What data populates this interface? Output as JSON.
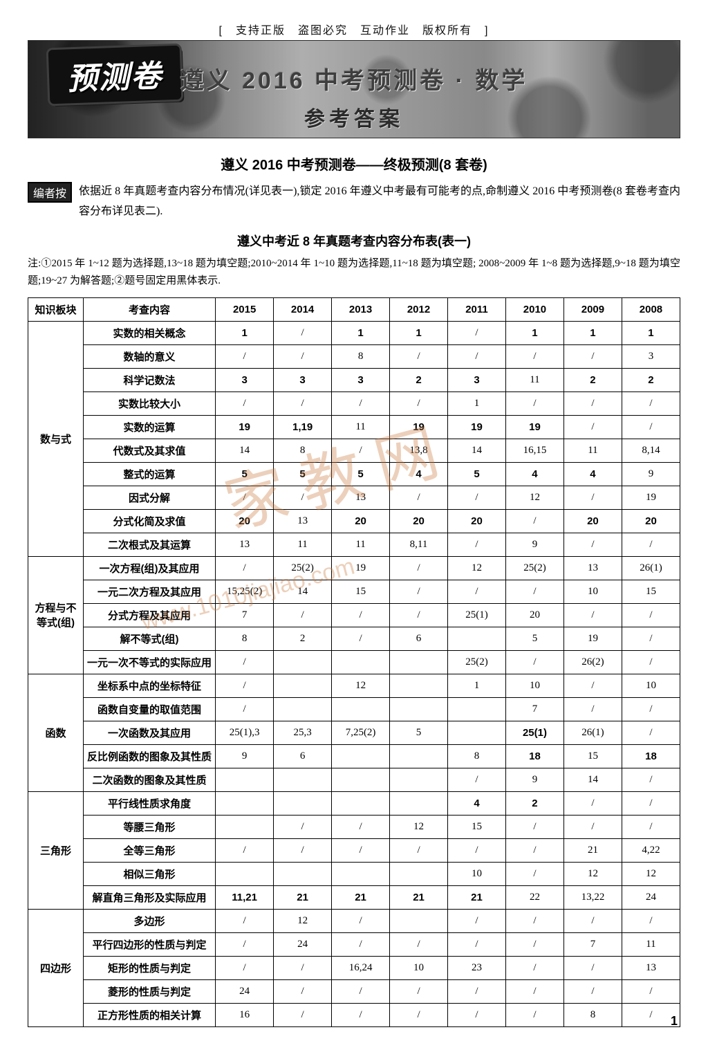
{
  "copyright_bar": "[　支持正版　盗图必究　互动作业　版权所有　]",
  "banner": {
    "stamp": "预测卷",
    "title": "遵义 2016 中考预测卷 · 数学",
    "subtitle": "参考答案"
  },
  "section_title": "遵义 2016 中考预测卷——终极预测(8 套卷)",
  "editor": {
    "tag": "编者按",
    "text": "依据近 8 年真题考查内容分布情况(详见表一),锁定 2016 年遵义中考最有可能考的点,命制遵义 2016 中考预测卷(8 套卷考查内容分布详见表二)."
  },
  "table_title": "遵义中考近 8 年真题考查内容分布表(表一)",
  "note": "注:①2015 年 1~12 题为选择题,13~18 题为填空题;2010~2014 年 1~10 题为选择题,11~18 题为填空题; 2008~2009 年 1~8 题为选择题,9~18 题为填空题;19~27 为解答题;②题号固定用黑体表示.",
  "table": {
    "columns": [
      "知识板块",
      "考查内容",
      "2015",
      "2014",
      "2013",
      "2012",
      "2011",
      "2010",
      "2009",
      "2008"
    ],
    "groups": [
      {
        "block": "数与式",
        "rows": [
          {
            "content": "实数的相关概念",
            "cells": [
              "1",
              "/",
              "1",
              "1",
              "/",
              "1",
              "1",
              "1"
            ],
            "bold": [
              true,
              false,
              true,
              true,
              false,
              true,
              true,
              true
            ]
          },
          {
            "content": "数轴的意义",
            "cells": [
              "/",
              "/",
              "8",
              "/",
              "/",
              "/",
              "/",
              "3"
            ]
          },
          {
            "content": "科学记数法",
            "cells": [
              "3",
              "3",
              "3",
              "2",
              "3",
              "11",
              "2",
              "2"
            ],
            "bold": [
              true,
              true,
              true,
              true,
              true,
              false,
              true,
              true
            ]
          },
          {
            "content": "实数比较大小",
            "cells": [
              "/",
              "/",
              "/",
              "/",
              "1",
              "/",
              "/",
              "/"
            ]
          },
          {
            "content": "实数的运算",
            "cells": [
              "19",
              "1,19",
              "11",
              "19",
              "19",
              "19",
              "/",
              "/"
            ],
            "bold": [
              true,
              true,
              false,
              true,
              true,
              true,
              false,
              false
            ]
          },
          {
            "content": "代数式及其求值",
            "cells": [
              "14",
              "8",
              "/",
              "13,8",
              "14",
              "16,15",
              "11",
              "8,14"
            ]
          },
          {
            "content": "整式的运算",
            "cells": [
              "5",
              "5",
              "5",
              "4",
              "5",
              "4",
              "4",
              "9"
            ],
            "bold": [
              true,
              true,
              true,
              true,
              true,
              true,
              true,
              false
            ]
          },
          {
            "content": "因式分解",
            "cells": [
              "/",
              "/",
              "13",
              "/",
              "/",
              "12",
              "/",
              "19"
            ]
          },
          {
            "content": "分式化简及求值",
            "cells": [
              "20",
              "13",
              "20",
              "20",
              "20",
              "/",
              "20",
              "20"
            ],
            "bold": [
              true,
              false,
              true,
              true,
              true,
              false,
              true,
              true
            ]
          },
          {
            "content": "二次根式及其运算",
            "cells": [
              "13",
              "11",
              "11",
              "8,11",
              "/",
              "9",
              "/",
              "/"
            ]
          }
        ]
      },
      {
        "block": "方程与不等式(组)",
        "rows": [
          {
            "content": "一次方程(组)及其应用",
            "cells": [
              "/",
              "25(2)",
              "19",
              "/",
              "12",
              "25(2)",
              "13",
              "26(1)"
            ]
          },
          {
            "content": "一元二次方程及其应用",
            "cells": [
              "15,25(2)",
              "14",
              "15",
              "/",
              "/",
              "/",
              "10",
              "15"
            ]
          },
          {
            "content": "分式方程及其应用",
            "cells": [
              "7",
              "/",
              "/",
              "/",
              "25(1)",
              "20",
              "/",
              "/"
            ]
          },
          {
            "content": "解不等式(组)",
            "cells": [
              "8",
              "2",
              "/",
              "6",
              "",
              "5",
              "19",
              "/"
            ]
          },
          {
            "content": "一元一次不等式的实际应用",
            "cells": [
              "/",
              "",
              "",
              "",
              "25(2)",
              "/",
              "26(2)",
              "/"
            ]
          }
        ]
      },
      {
        "block": "函数",
        "rows": [
          {
            "content": "坐标系中点的坐标特征",
            "cells": [
              "/",
              "",
              "12",
              "",
              "1",
              "10",
              "/",
              "10"
            ]
          },
          {
            "content": "函数自变量的取值范围",
            "cells": [
              "/",
              "",
              "",
              "",
              "",
              "7",
              "/",
              "/"
            ]
          },
          {
            "content": "一次函数及其应用",
            "cells": [
              "25(1),3",
              "25,3",
              "7,25(2)",
              "5",
              "",
              "25(1)",
              "26(1)",
              "/"
            ],
            "bold": [
              false,
              false,
              false,
              false,
              false,
              true,
              false,
              false
            ]
          },
          {
            "content": "反比例函数的图象及其性质",
            "cells": [
              "9",
              "6",
              "",
              "",
              "8",
              "18",
              "15",
              "18"
            ],
            "bold": [
              false,
              false,
              false,
              false,
              false,
              true,
              false,
              true
            ]
          },
          {
            "content": "二次函数的图象及其性质",
            "cells": [
              "",
              "",
              "",
              "",
              "/",
              "9",
              "14",
              "/"
            ]
          }
        ]
      },
      {
        "block": "三角形",
        "rows": [
          {
            "content": "平行线性质求角度",
            "cells": [
              "",
              "",
              "",
              "",
              "4",
              "2",
              "/",
              "/"
            ],
            "bold": [
              false,
              false,
              false,
              false,
              true,
              true,
              false,
              false
            ]
          },
          {
            "content": "等腰三角形",
            "cells": [
              "",
              "/",
              "/",
              "12",
              "15",
              "/",
              "/",
              "/"
            ]
          },
          {
            "content": "全等三角形",
            "cells": [
              "/",
              "/",
              "/",
              "/",
              "/",
              "/",
              "21",
              "4,22"
            ]
          },
          {
            "content": "相似三角形",
            "cells": [
              "",
              "",
              "",
              "",
              "10",
              "/",
              "12",
              "12"
            ]
          },
          {
            "content": "解直角三角形及实际应用",
            "cells": [
              "11,21",
              "21",
              "21",
              "21",
              "21",
              "22",
              "13,22",
              "24"
            ],
            "bold": [
              true,
              true,
              true,
              true,
              true,
              false,
              false,
              false
            ]
          }
        ]
      },
      {
        "block": "四边形",
        "rows": [
          {
            "content": "多边形",
            "cells": [
              "/",
              "12",
              "/",
              "",
              "/",
              "/",
              "/",
              "/"
            ]
          },
          {
            "content": "平行四边形的性质与判定",
            "cells": [
              "/",
              "24",
              "/",
              "/",
              "/",
              "/",
              "7",
              "11"
            ]
          },
          {
            "content": "矩形的性质与判定",
            "cells": [
              "/",
              "/",
              "16,24",
              "10",
              "23",
              "/",
              "/",
              "13"
            ]
          },
          {
            "content": "菱形的性质与判定",
            "cells": [
              "24",
              "/",
              "/",
              "/",
              "/",
              "/",
              "/",
              "/"
            ]
          },
          {
            "content": "正方形性质的相关计算",
            "cells": [
              "16",
              "/",
              "/",
              "/",
              "/",
              "/",
              "8",
              "/"
            ]
          }
        ]
      }
    ]
  },
  "watermarks": {
    "main": "家 教 网",
    "url": "www.1010jiajiao.com"
  },
  "page_number": "1"
}
